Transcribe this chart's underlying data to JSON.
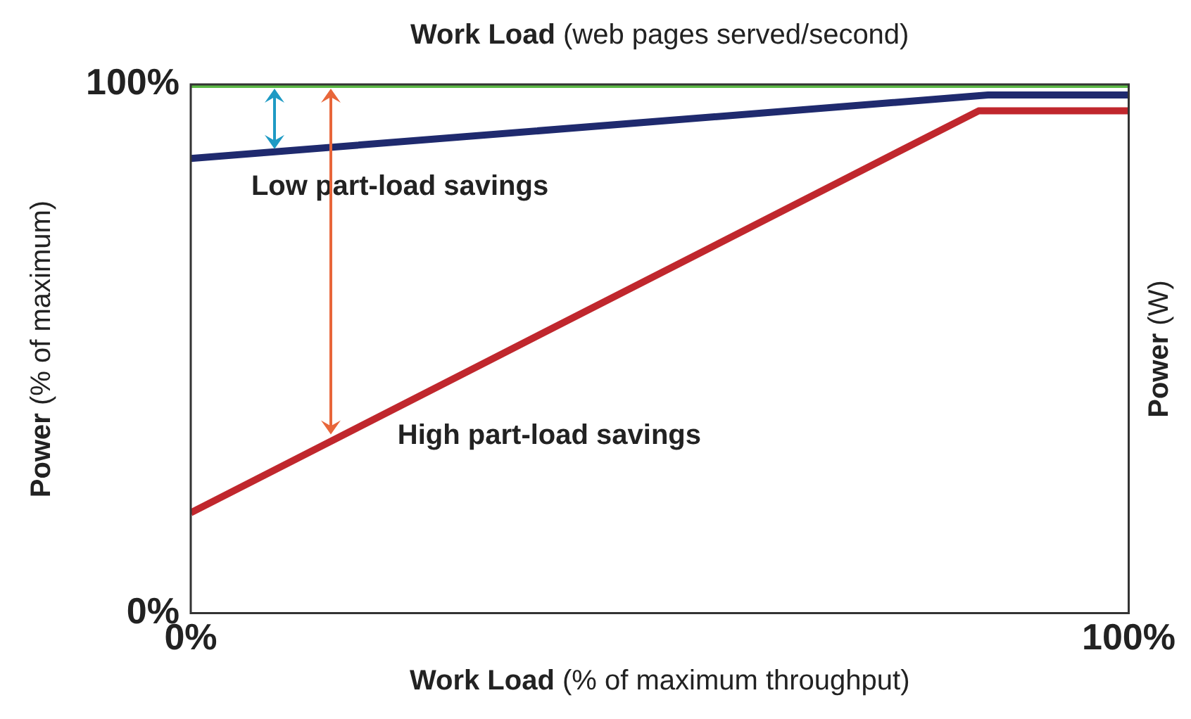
{
  "chart_data": {
    "type": "line",
    "x2label": "Work Load (web pages served/second)",
    "xlabel": "Work Load (% of maximum throughput)",
    "ylabel": "Power (% of maximum)",
    "y2label": "Power (W)",
    "xlim": [
      0,
      100
    ],
    "ylim": [
      0,
      100
    ],
    "xticks": [
      {
        "value": 0,
        "label": "0%"
      },
      {
        "value": 100,
        "label": "100%"
      }
    ],
    "yticks": [
      {
        "value": 0,
        "label": "0%"
      },
      {
        "value": 100,
        "label": "100%"
      }
    ],
    "series": [
      {
        "color": "#5cb946",
        "x": [
          0,
          100
        ],
        "values": [
          100,
          100
        ]
      },
      {
        "color": "#1f2a6e",
        "x": [
          0,
          85,
          100
        ],
        "values": [
          86,
          98,
          98
        ]
      },
      {
        "color": "#c0272d",
        "x": [
          0,
          84,
          100
        ],
        "values": [
          19,
          95,
          95
        ]
      }
    ],
    "annotations": [
      {
        "text": "Low part-load savings",
        "x": 9,
        "y": 87
      },
      {
        "text": "High part-load savings",
        "x": 15,
        "y": 33
      }
    ],
    "marker": "none",
    "line_style": "solid"
  }
}
